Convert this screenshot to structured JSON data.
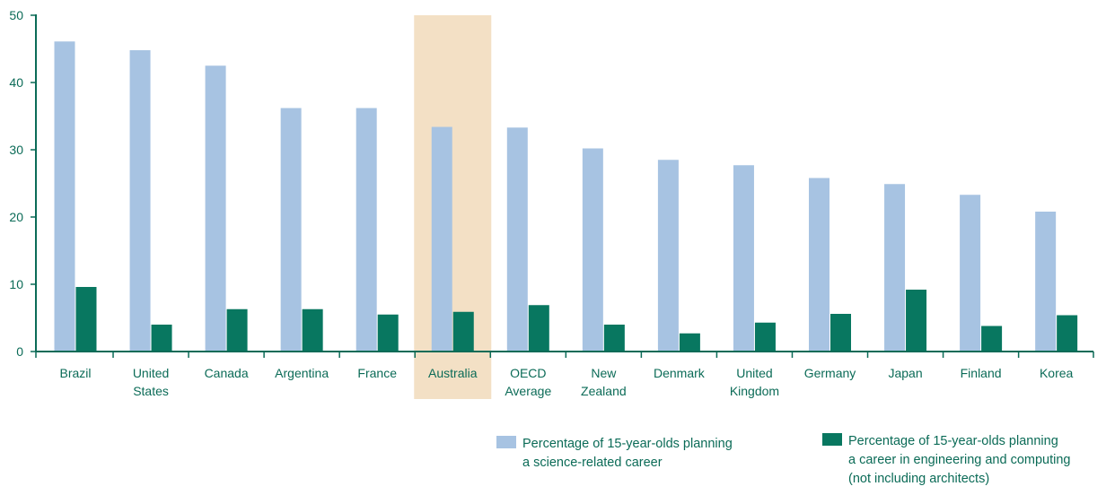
{
  "chart_data": {
    "type": "bar",
    "title": "",
    "xlabel": "",
    "ylabel": "",
    "ylim": [
      0,
      50
    ],
    "yticks": [
      0,
      10,
      20,
      30,
      40,
      50
    ],
    "grid": false,
    "legend_position": "bottom-right",
    "categories": [
      [
        "Brazil"
      ],
      [
        "United",
        "States"
      ],
      [
        "Canada"
      ],
      [
        "Argentina"
      ],
      [
        "France"
      ],
      [
        "Australia"
      ],
      [
        "OECD",
        "Average"
      ],
      [
        "New",
        "Zealand"
      ],
      [
        "Denmark"
      ],
      [
        "United",
        "Kingdom"
      ],
      [
        "Germany"
      ],
      [
        "Japan"
      ],
      [
        "Finland"
      ],
      [
        "Korea"
      ]
    ],
    "highlighted_category_index": 5,
    "series": [
      {
        "name": [
          "Percentage of 15-year-olds planning",
          "a science-related career"
        ],
        "color": "#a7c3e2",
        "values": [
          46.1,
          44.8,
          42.5,
          36.2,
          36.2,
          33.4,
          33.3,
          30.2,
          28.5,
          27.7,
          25.8,
          24.9,
          23.3,
          20.8
        ]
      },
      {
        "name": [
          "Percentage of 15-year-olds planning",
          "a career in engineering and computing",
          "(not including architects)"
        ],
        "color": "#087760",
        "values": [
          9.6,
          4.0,
          6.3,
          6.3,
          5.5,
          5.9,
          6.9,
          4.0,
          2.7,
          4.3,
          5.6,
          9.2,
          3.8,
          5.4
        ]
      }
    ],
    "colors": {
      "axis": "#0b6b57",
      "highlight": "#f3e0c5",
      "text": "#0b6b57"
    }
  }
}
